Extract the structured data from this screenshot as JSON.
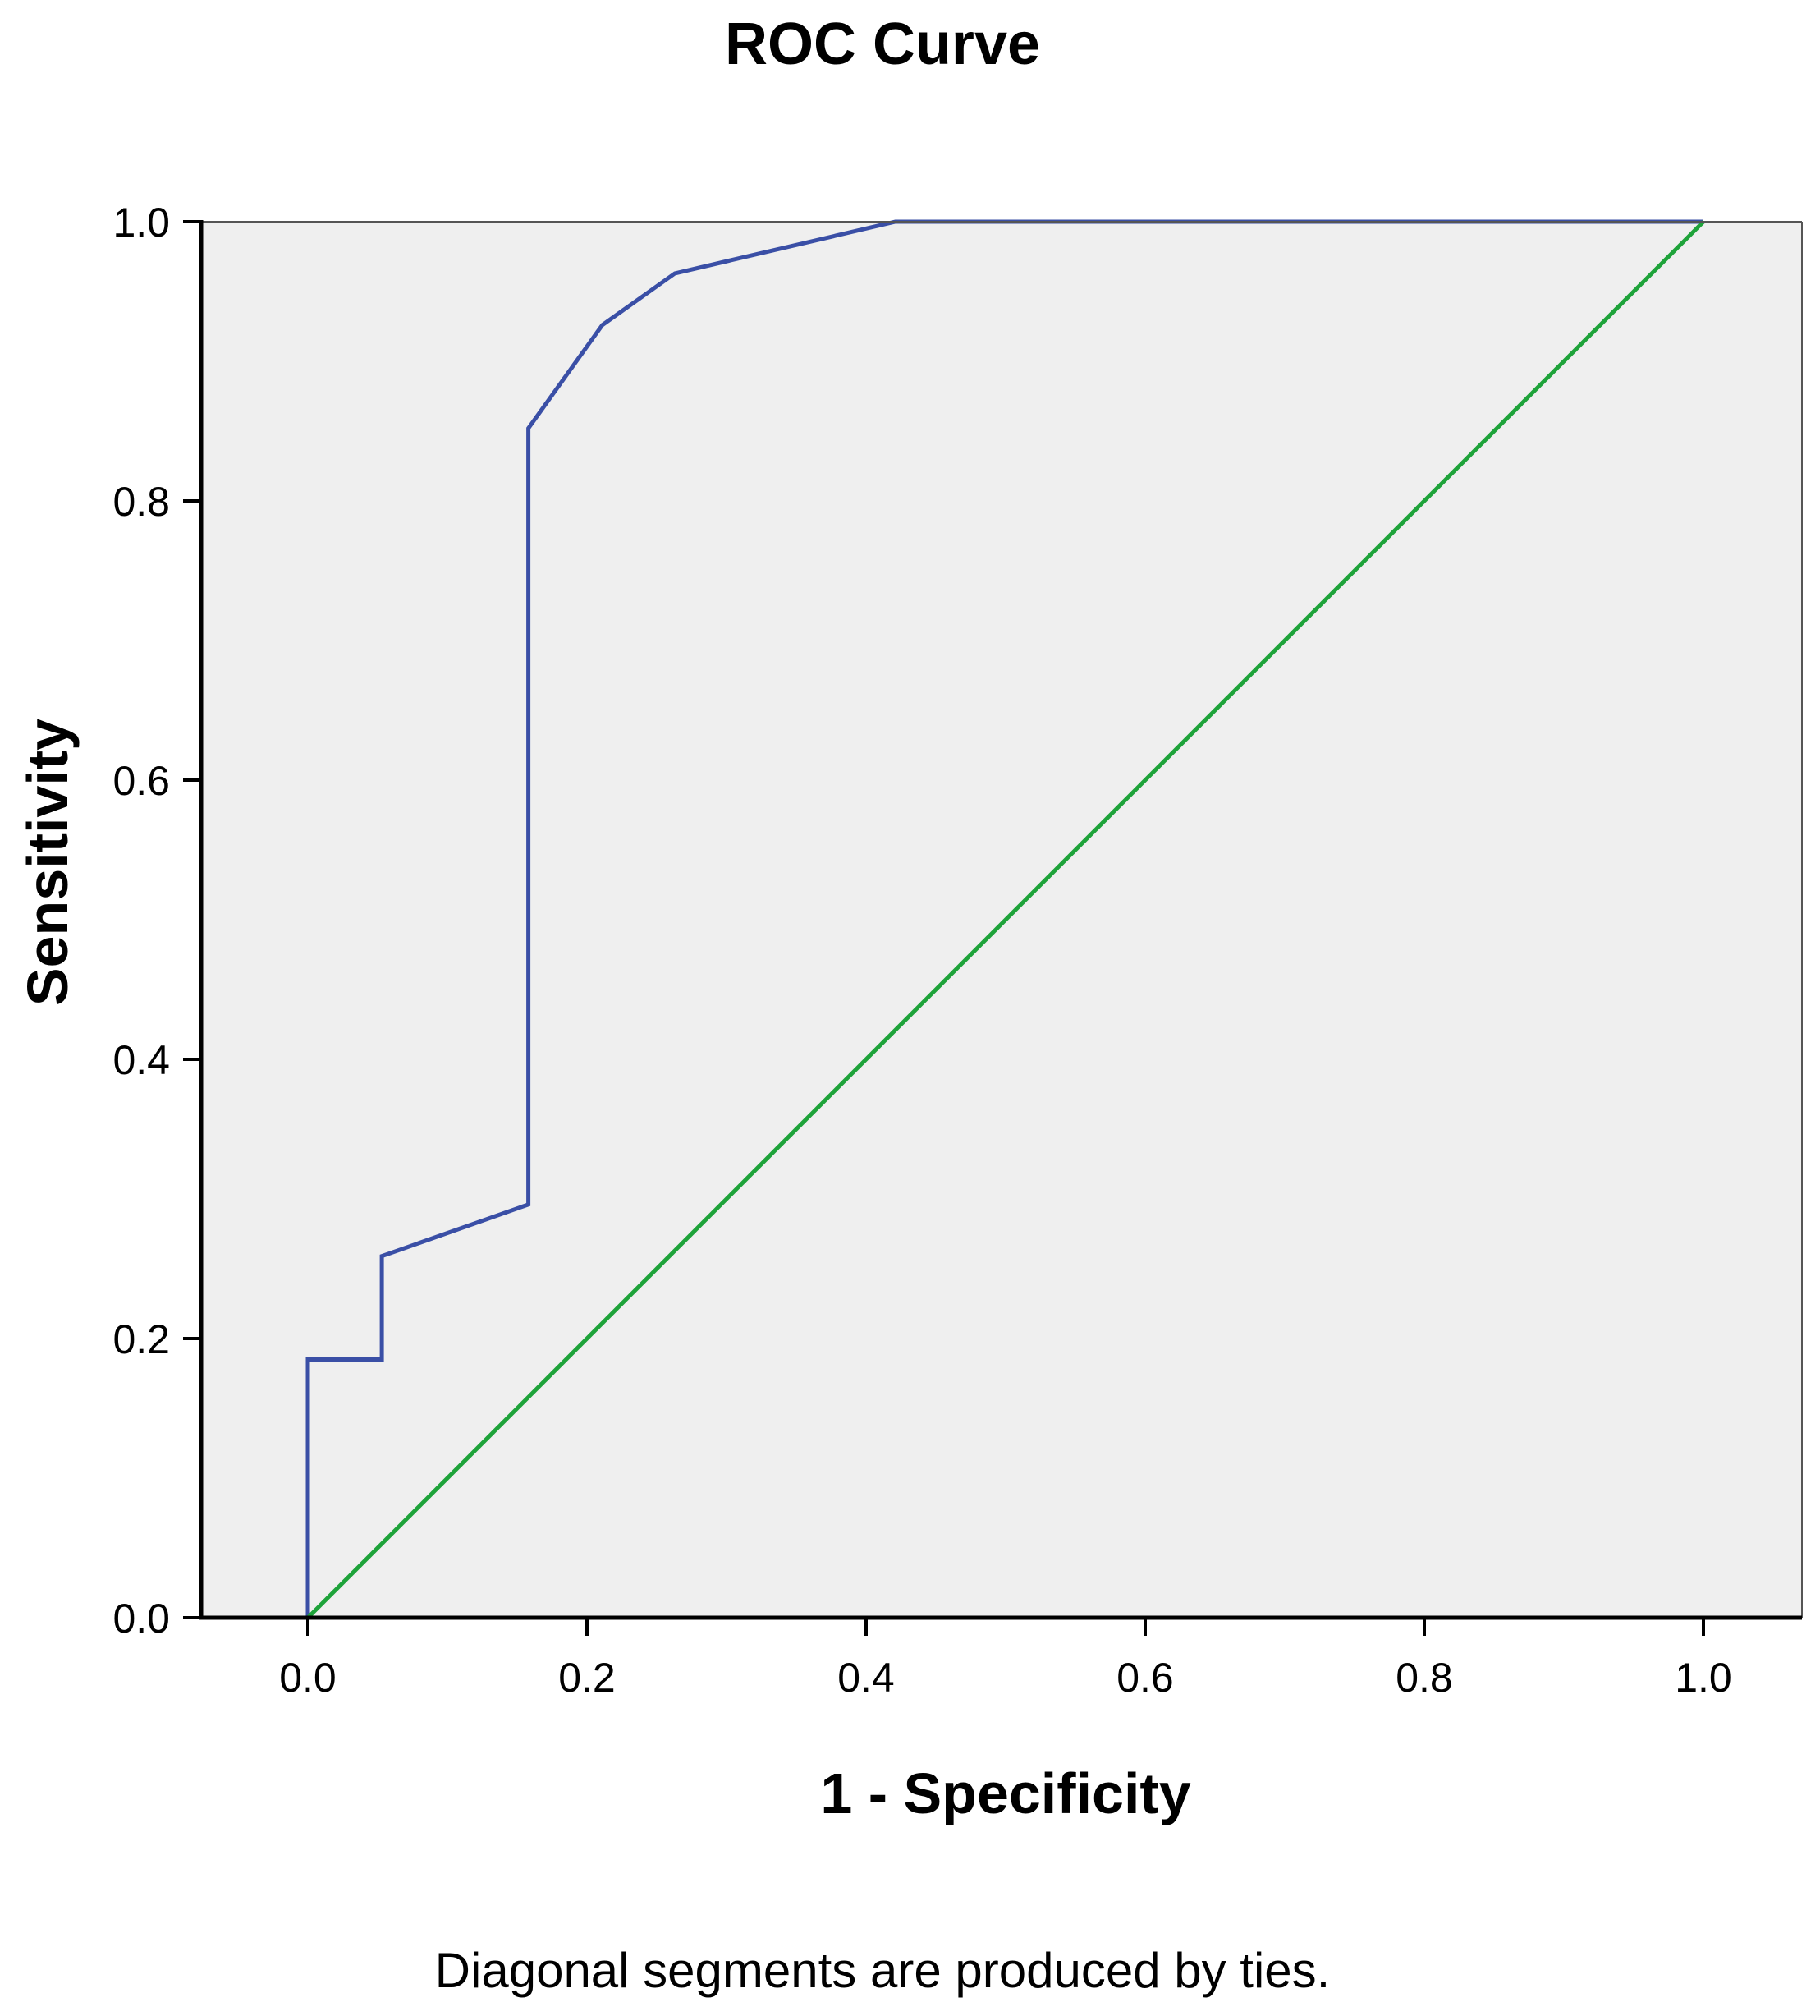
{
  "chart_data": {
    "type": "line",
    "title": "ROC Curve",
    "xlabel": "1 - Specificity",
    "ylabel": "Sensitivity",
    "footnote": "Diagonal segments are produced by ties.",
    "xlim": [
      -0.075,
      1.07
    ],
    "ylim": [
      0,
      1
    ],
    "xticks": [
      {
        "value": 0,
        "label": "0.0"
      },
      {
        "value": 0.2,
        "label": "0.2"
      },
      {
        "value": 0.4,
        "label": "0.4"
      },
      {
        "value": 0.6,
        "label": "0.6"
      },
      {
        "value": 0.8,
        "label": "0.8"
      },
      {
        "value": 1.0,
        "label": "1.0"
      }
    ],
    "yticks": [
      {
        "value": 0,
        "label": "0.0"
      },
      {
        "value": 0.2,
        "label": "0.2"
      },
      {
        "value": 0.4,
        "label": "0.4"
      },
      {
        "value": 0.6,
        "label": "0.6"
      },
      {
        "value": 0.8,
        "label": "0.8"
      },
      {
        "value": 1.0,
        "label": "1.0"
      }
    ],
    "grid": false,
    "plot_background": "#efefef",
    "series": [
      {
        "color": "#3a4fa6",
        "x": [
          0,
          0,
          0.053,
          0.053,
          0.158,
          0.158,
          0.211,
          0.263,
          0.421,
          1.0
        ],
        "y": [
          0,
          0.185,
          0.185,
          0.259,
          0.296,
          0.852,
          0.926,
          0.963,
          1.0,
          1.0
        ]
      },
      {
        "color": "#1ea33a",
        "x": [
          0,
          1
        ],
        "y": [
          0,
          1
        ]
      }
    ]
  }
}
